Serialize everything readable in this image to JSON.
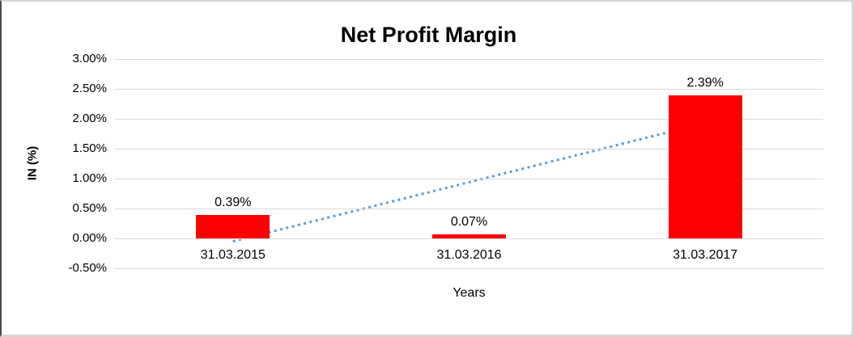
{
  "chart_data": {
    "type": "bar",
    "title": "Net Profit Margin",
    "categories": [
      "31.03.2015",
      "31.03.2016",
      "31.03.2017"
    ],
    "values": [
      0.39,
      0.07,
      2.39
    ],
    "data_labels": [
      "0.39%",
      "0.07%",
      "2.39%"
    ],
    "xlabel": "Years",
    "ylabel": "IN (%)",
    "ylim": [
      -0.5,
      3.0
    ],
    "ytick_step": 0.5,
    "ytick_labels": [
      "3.00%",
      "2.50%",
      "2.00%",
      "1.50%",
      "1.00%",
      "0.50%",
      "0.00%",
      "-0.50%"
    ],
    "grid": true,
    "legend_position": "none",
    "bar_color": "#FF0000",
    "gridline_color": "#D9D9D9",
    "text_color": "#000000",
    "trendline": {
      "type": "linear",
      "line_style": "dotted",
      "color": "#5B9BD5",
      "start_value": -0.05,
      "end_value": 1.93
    }
  }
}
